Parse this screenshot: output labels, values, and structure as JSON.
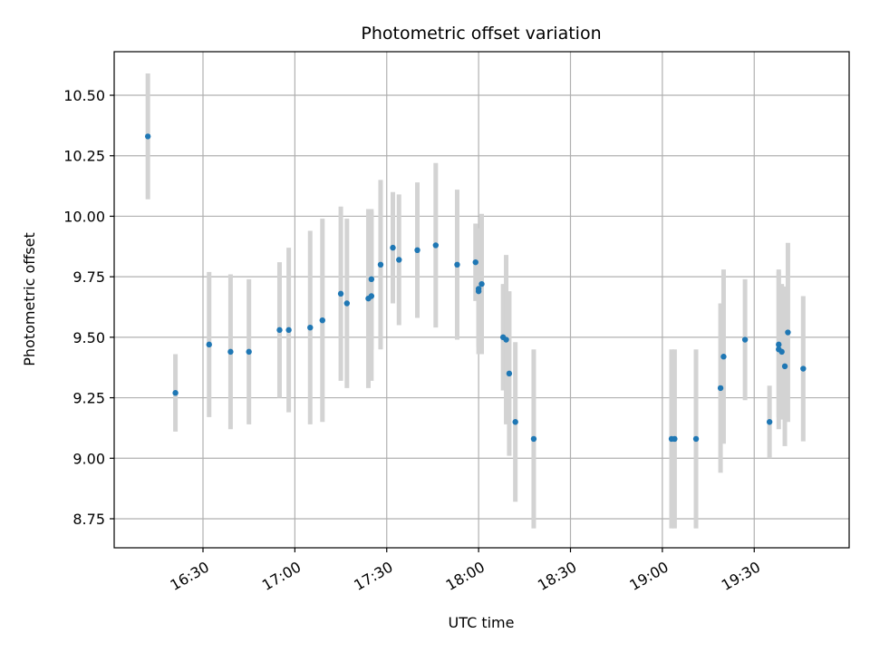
{
  "chart_data": {
    "type": "scatter",
    "title": "Photometric offset variation",
    "xlabel": "UTC time",
    "ylabel": "Photometric offset",
    "xlim": [
      "16:01",
      "20:01"
    ],
    "ylim": [
      8.63,
      10.68
    ],
    "x_ticks": [
      "16:30",
      "17:00",
      "17:30",
      "18:00",
      "18:30",
      "19:00",
      "19:30"
    ],
    "y_ticks": [
      "8.75",
      "9.00",
      "9.25",
      "9.50",
      "9.75",
      "10.00",
      "10.25",
      "10.50"
    ],
    "grid": true,
    "colors": {
      "marker": "#1f77b4",
      "errorbar": "#d3d3d3",
      "grid": "#b0b0b0"
    },
    "x": [
      "16:12",
      "16:21",
      "16:32",
      "16:39",
      "16:45",
      "16:55",
      "16:58",
      "17:05",
      "17:09",
      "17:15",
      "17:17",
      "17:24",
      "17:25",
      "17:25",
      "17:28",
      "17:32",
      "17:34",
      "17:40",
      "17:46",
      "17:53",
      "17:59",
      "18:00",
      "18:00",
      "18:01",
      "18:08",
      "18:09",
      "18:10",
      "18:12",
      "18:18",
      "19:03",
      "19:04",
      "19:11",
      "19:19",
      "19:20",
      "19:27",
      "19:35",
      "19:38",
      "19:38",
      "19:39",
      "19:40",
      "19:41",
      "19:46"
    ],
    "y": [
      10.33,
      9.27,
      9.47,
      9.44,
      9.44,
      9.53,
      9.53,
      9.54,
      9.57,
      9.68,
      9.64,
      9.66,
      9.74,
      9.67,
      9.8,
      9.87,
      9.82,
      9.86,
      9.88,
      9.8,
      9.81,
      9.69,
      9.7,
      9.72,
      9.5,
      9.49,
      9.35,
      9.15,
      9.08,
      9.08,
      9.08,
      9.08,
      9.29,
      9.42,
      9.49,
      9.15,
      9.47,
      9.45,
      9.44,
      9.38,
      9.52,
      9.37
    ],
    "yerr": [
      0.26,
      0.16,
      0.3,
      0.32,
      0.3,
      0.28,
      0.34,
      0.4,
      0.42,
      0.36,
      0.35,
      0.37,
      0.29,
      0.35,
      0.35,
      0.23,
      0.27,
      0.28,
      0.34,
      0.31,
      0.16,
      0.26,
      0.24,
      0.29,
      0.22,
      0.35,
      0.34,
      0.33,
      0.37,
      0.37,
      0.37,
      0.37,
      0.35,
      0.36,
      0.25,
      0.15,
      0.3,
      0.33,
      0.28,
      0.33,
      0.37,
      0.3
    ]
  }
}
